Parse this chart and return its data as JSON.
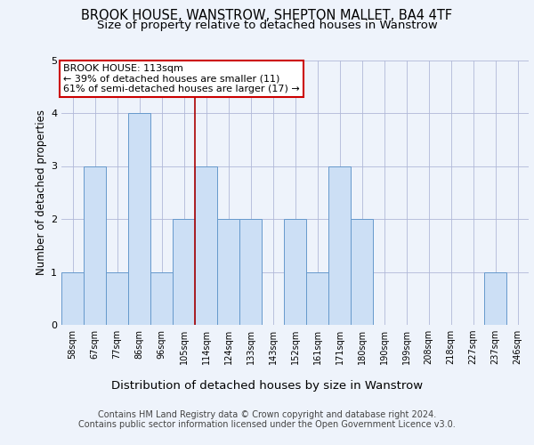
{
  "title_line1": "BROOK HOUSE, WANSTROW, SHEPTON MALLET, BA4 4TF",
  "title_line2": "Size of property relative to detached houses in Wanstrow",
  "xlabel": "Distribution of detached houses by size in Wanstrow",
  "ylabel": "Number of detached properties",
  "categories": [
    "58sqm",
    "67sqm",
    "77sqm",
    "86sqm",
    "96sqm",
    "105sqm",
    "114sqm",
    "124sqm",
    "133sqm",
    "143sqm",
    "152sqm",
    "161sqm",
    "171sqm",
    "180sqm",
    "190sqm",
    "199sqm",
    "208sqm",
    "218sqm",
    "227sqm",
    "237sqm",
    "246sqm"
  ],
  "values": [
    1,
    3,
    1,
    4,
    1,
    2,
    3,
    2,
    2,
    0,
    2,
    1,
    3,
    2,
    0,
    0,
    0,
    0,
    0,
    1,
    0
  ],
  "bar_color": "#ccdff5",
  "bar_edge_color": "#6699cc",
  "highlight_line_index": 6,
  "highlight_line_color": "#aa0000",
  "ylim": [
    0,
    5
  ],
  "yticks": [
    0,
    1,
    2,
    3,
    4,
    5
  ],
  "annotation_box_text_line1": "BROOK HOUSE: 113sqm",
  "annotation_box_text_line2": "← 39% of detached houses are smaller (11)",
  "annotation_box_text_line3": "61% of semi-detached houses are larger (17) →",
  "annotation_box_color": "#cc0000",
  "footer_line1": "Contains HM Land Registry data © Crown copyright and database right 2024.",
  "footer_line2": "Contains public sector information licensed under the Open Government Licence v3.0.",
  "background_color": "#eef3fb",
  "grid_color": "#b0b8d8",
  "title_fontsize": 10.5,
  "subtitle_fontsize": 9.5,
  "ylabel_fontsize": 8.5,
  "xlabel_fontsize": 9.5,
  "tick_fontsize": 7,
  "annotation_fontsize": 8,
  "footer_fontsize": 7
}
